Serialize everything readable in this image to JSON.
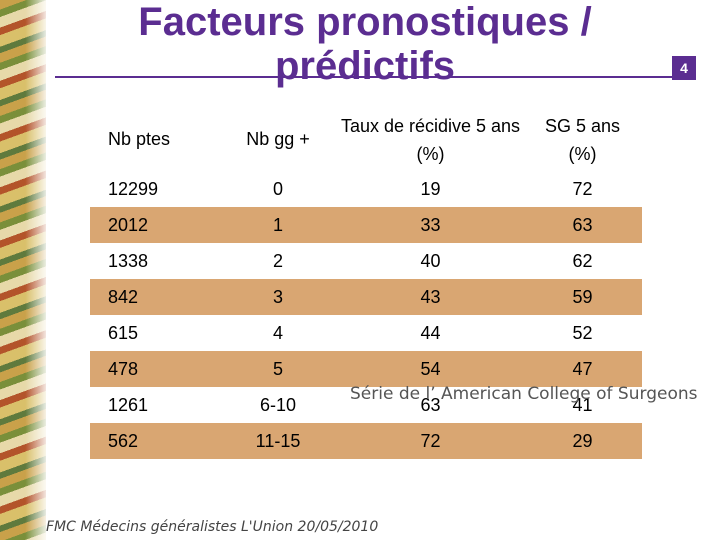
{
  "slide": {
    "title_line1": "Facteurs pronostiques /",
    "title_line2": "prédictifs",
    "page_number": "4",
    "accent_color": "#5b2d91",
    "row_highlight_color": "#d9a672"
  },
  "table": {
    "headers": {
      "nb_ptes": "Nb ptes",
      "nb_gg": "Nb gg +",
      "recidive_line1": "Taux de récidive 5 ans",
      "recidive_line2": "(%)",
      "sg_line1": "SG 5 ans",
      "sg_line2": "(%)"
    },
    "rows": [
      {
        "nb_ptes": "12299",
        "nb_gg": "0",
        "recidive": "19",
        "sg": "72"
      },
      {
        "nb_ptes": "2012",
        "nb_gg": "1",
        "recidive": "33",
        "sg": "63"
      },
      {
        "nb_ptes": "1338",
        "nb_gg": "2",
        "recidive": "40",
        "sg": "62"
      },
      {
        "nb_ptes": "842",
        "nb_gg": "3",
        "recidive": "43",
        "sg": "59"
      },
      {
        "nb_ptes": "615",
        "nb_gg": "4",
        "recidive": "44",
        "sg": "52"
      },
      {
        "nb_ptes": "478",
        "nb_gg": "5",
        "recidive": "54",
        "sg": "47"
      },
      {
        "nb_ptes": "1261",
        "nb_gg": "6-10",
        "recidive": "63",
        "sg": "41"
      },
      {
        "nb_ptes": "562",
        "nb_gg": "11-15",
        "recidive": "72",
        "sg": "29"
      }
    ]
  },
  "note": "Série de l’ American College of Surgeons",
  "footer": "FMC Médecins généralistes L'Union 20/05/2010"
}
